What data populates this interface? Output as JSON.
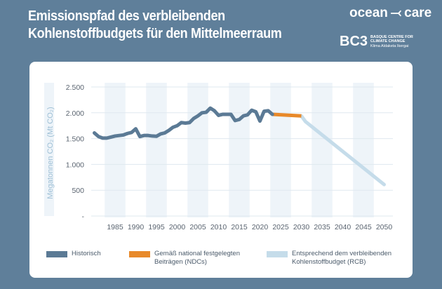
{
  "header": {
    "title": "Emissionspfad des verbleibenden Kohlenstoffbudgets für den Mittelmeerraum"
  },
  "logos": {
    "oceancare_left": "ocean",
    "oceancare_right": "care",
    "bc3": "BC3",
    "bc3_line1": "BASQUE CENTRE FOR",
    "bc3_line2": "CLIMATE CHANGE",
    "bc3_line3": "Klima Aldaketa Ikergai"
  },
  "colors": {
    "historic": "#5b7a95",
    "ndc": "#e8892a",
    "rcb": "#c5dcea",
    "band": "#eef4f9"
  },
  "chart_data": {
    "type": "line",
    "title": "Emissionspfad des verbleibenden Kohlenstoffbudgets für den Mittelmeerraum",
    "xlabel": "",
    "ylabel": "Megatonnen CO₂ (Mt CO₂)",
    "ylim": [
      0,
      2500
    ],
    "yticks": [
      {
        "v": 2500,
        "label": "2.500"
      },
      {
        "v": 2000,
        "label": "2.000"
      },
      {
        "v": 1500,
        "label": "1.500"
      },
      {
        "v": 1000,
        "label": "1.000"
      },
      {
        "v": 500,
        "label": "500"
      },
      {
        "v": 0,
        "label": "-"
      }
    ],
    "xticks": [
      1985,
      1990,
      1995,
      2000,
      2005,
      2010,
      2015,
      2020,
      2025,
      2030,
      2035,
      2040,
      2045,
      2050
    ],
    "legend_position": "bottom",
    "series": [
      {
        "name": "Historisch",
        "x": [
          1980,
          1981,
          1982,
          1983,
          1984,
          1985,
          1986,
          1987,
          1988,
          1989,
          1990,
          1991,
          1992,
          1993,
          1994,
          1995,
          1996,
          1997,
          1998,
          1999,
          2000,
          2001,
          2002,
          2003,
          2004,
          2005,
          2006,
          2007,
          2008,
          2009,
          2010,
          2011,
          2012,
          2013,
          2014,
          2015,
          2016,
          2017,
          2018,
          2019,
          2020,
          2021,
          2022,
          2023
        ],
        "values": [
          1610,
          1540,
          1510,
          1510,
          1530,
          1550,
          1560,
          1570,
          1600,
          1620,
          1690,
          1540,
          1560,
          1560,
          1550,
          1545,
          1590,
          1610,
          1660,
          1720,
          1750,
          1810,
          1800,
          1810,
          1890,
          1940,
          2000,
          2010,
          2090,
          2040,
          1950,
          1970,
          1970,
          1970,
          1850,
          1870,
          1940,
          1960,
          2050,
          2020,
          1840,
          2030,
          2040,
          1970
        ]
      },
      {
        "name": "Gemäß national festgelegten Beiträgen (NDCs)",
        "x": [
          2023,
          2030
        ],
        "values": [
          1970,
          1940
        ]
      },
      {
        "name": "Entsprechend dem verbleibenden Kohlenstoffbudget (RCB)",
        "x": [
          2030,
          2031,
          2050
        ],
        "values": [
          1940,
          1830,
          610
        ]
      }
    ]
  },
  "legend": [
    {
      "line1": "Historisch",
      "line2": ""
    },
    {
      "line1": "Gemäß national festgelegten",
      "line2": "Beiträgen (NDCs)"
    },
    {
      "line1": "Entsprechend dem verbleibenden",
      "line2": "Kohlenstoffbudget (RCB)"
    }
  ]
}
